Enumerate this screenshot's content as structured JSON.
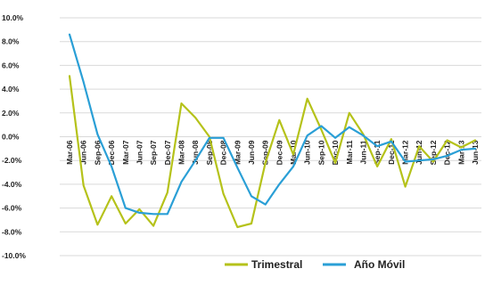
{
  "chart_data": {
    "type": "line",
    "title": "",
    "xlabel": "",
    "ylabel": "",
    "ylim": [
      -10,
      10
    ],
    "yticks": [
      10,
      8,
      6,
      4,
      2,
      0,
      -2,
      -4,
      -6,
      -8,
      -10
    ],
    "ytick_labels": [
      "10.0%",
      "8.0%",
      "6.0%",
      "4.0%",
      "2.0%",
      "0.0%",
      "-2.0%",
      "-4.0%",
      "-6.0%",
      "-8.0%",
      "-10.0%"
    ],
    "grid": true,
    "legend_position": "bottom",
    "categories": [
      "Mar-06",
      "Jun-06",
      "Sep-06",
      "Dec-06",
      "Mar-07",
      "Jun-07",
      "Sep-07",
      "Dec-07",
      "Mar-08",
      "Jun-08",
      "Sep-08",
      "Dec-08",
      "Mar-09",
      "Jun-09",
      "Sep-09",
      "Dec-09",
      "Mar-10",
      "Jun-10",
      "Sep-10",
      "Dec-10",
      "Mar-11",
      "Jun-11",
      "Sep-11",
      "Dec-11",
      "Mar-12",
      "Jun-12",
      "Sep-12",
      "Dec-12",
      "Mar-13",
      "Jun-13"
    ],
    "series": [
      {
        "name": "Trimestral",
        "color": "#b5c21a",
        "values": [
          5.1,
          -4.1,
          -7.4,
          -5.0,
          -7.3,
          -6.1,
          -7.5,
          -4.7,
          2.8,
          1.6,
          0.0,
          -4.8,
          -7.6,
          -7.3,
          -2.2,
          1.4,
          -1.5,
          3.2,
          0.6,
          -2.2,
          2.0,
          0.2,
          -2.5,
          -0.2,
          -4.2,
          -0.8,
          -2.1,
          -0.3,
          -0.9,
          -0.3
        ]
      },
      {
        "name": "Año Móvil",
        "color": "#2a9fd6",
        "values": [
          8.6,
          4.6,
          0.2,
          -2.5,
          -6.0,
          -6.4,
          -6.5,
          -6.5,
          -3.8,
          -2.0,
          -0.1,
          -0.1,
          -2.6,
          -5.0,
          -5.7,
          -4.0,
          -2.5,
          0.1,
          0.9,
          -0.1,
          0.8,
          0.1,
          -0.8,
          -0.4,
          -2.1,
          -2.0,
          -1.9,
          -1.6,
          -1.1,
          -1.0
        ]
      }
    ]
  }
}
